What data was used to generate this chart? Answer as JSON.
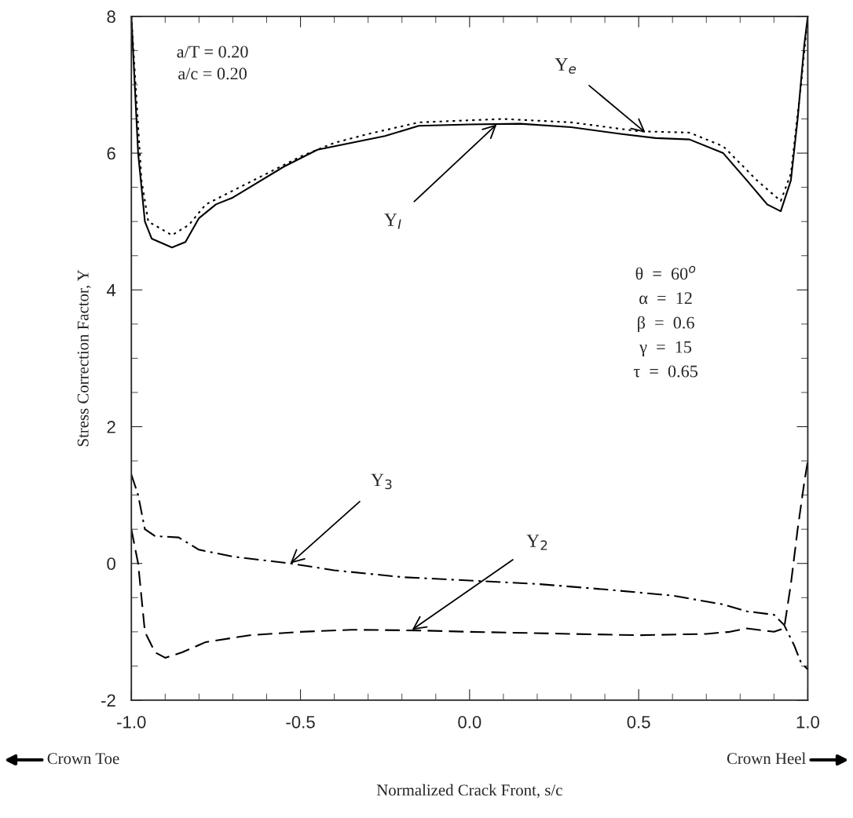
{
  "chart_data": {
    "type": "line",
    "xlabel": "Normalized Crack Front, s/c",
    "ylabel": "Stress Correction Factor, Y",
    "xlim": [
      -1.0,
      1.0
    ],
    "ylim": [
      -2,
      8
    ],
    "xticks": [
      {
        "value": -1.0,
        "label": "-1.0"
      },
      {
        "value": -0.5,
        "label": "-0.5"
      },
      {
        "value": 0.0,
        "label": "0.0"
      },
      {
        "value": 0.5,
        "label": "0.5"
      },
      {
        "value": 1.0,
        "label": "1.0"
      }
    ],
    "yticks": [
      {
        "value": -2,
        "label": "-2"
      },
      0,
      2,
      4,
      6,
      8
    ],
    "grid": false,
    "legend": false,
    "marker": "none",
    "series": [
      {
        "color": "#000000",
        "line_style": "solid",
        "x": [
          -1.0,
          -0.98,
          -0.96,
          -0.94,
          -0.88,
          -0.84,
          -0.8,
          -0.75,
          -0.7,
          -0.65,
          -0.55,
          -0.45,
          -0.35,
          -0.25,
          -0.15,
          0.0,
          0.15,
          0.3,
          0.45,
          0.55,
          0.65,
          0.75,
          0.82,
          0.88,
          0.92,
          0.95,
          0.97,
          0.99,
          1.0
        ],
        "values": [
          8.0,
          6.0,
          5.0,
          4.75,
          4.62,
          4.7,
          5.05,
          5.25,
          5.35,
          5.5,
          5.8,
          6.05,
          6.15,
          6.25,
          6.4,
          6.42,
          6.43,
          6.38,
          6.28,
          6.22,
          6.2,
          6.0,
          5.6,
          5.25,
          5.15,
          5.6,
          6.5,
          7.6,
          8.0
        ]
      },
      {
        "color": "#000000",
        "line_style": "dotted",
        "x": [
          -1.0,
          -0.97,
          -0.95,
          -0.88,
          -0.83,
          -0.78,
          -0.7,
          -0.6,
          -0.5,
          -0.4,
          -0.3,
          -0.15,
          0.0,
          0.1,
          0.3,
          0.5,
          0.65,
          0.75,
          0.85,
          0.92,
          0.95,
          0.98,
          1.0
        ],
        "values": [
          8.0,
          5.6,
          5.0,
          4.8,
          4.95,
          5.25,
          5.45,
          5.7,
          5.95,
          6.15,
          6.28,
          6.45,
          6.48,
          6.5,
          6.45,
          6.32,
          6.3,
          6.1,
          5.6,
          5.3,
          5.7,
          7.0,
          8.0
        ]
      },
      {
        "color": "#000000",
        "line_style": "dashdot",
        "x": [
          -1.0,
          -0.98,
          -0.96,
          -0.93,
          -0.86,
          -0.8,
          -0.7,
          -0.53,
          -0.4,
          -0.2,
          0.0,
          0.2,
          0.4,
          0.6,
          0.75,
          0.82,
          0.9,
          0.93,
          0.96,
          0.98,
          1.0
        ],
        "values": [
          1.3,
          1.0,
          0.5,
          0.4,
          0.38,
          0.2,
          0.1,
          0.0,
          -0.1,
          -0.2,
          -0.25,
          -0.3,
          -0.38,
          -0.47,
          -0.6,
          -0.7,
          -0.75,
          -0.9,
          -1.2,
          -1.45,
          -1.55
        ]
      },
      {
        "color": "#000000",
        "line_style": "dashed",
        "x": [
          -1.0,
          -0.98,
          -0.96,
          -0.93,
          -0.9,
          -0.85,
          -0.78,
          -0.65,
          -0.5,
          -0.35,
          -0.15,
          0.0,
          0.3,
          0.5,
          0.7,
          0.77,
          0.82,
          0.9,
          0.93,
          0.95,
          0.97,
          0.99,
          1.0
        ],
        "values": [
          0.5,
          0.0,
          -1.0,
          -1.3,
          -1.38,
          -1.3,
          -1.15,
          -1.05,
          -1.0,
          -0.97,
          -0.98,
          -1.0,
          -1.03,
          -1.05,
          -1.03,
          -1.0,
          -0.95,
          -1.0,
          -0.95,
          -0.3,
          0.5,
          1.2,
          1.5
        ]
      }
    ],
    "annotations": [
      {
        "text": "Y$_{I}$",
        "x": 0.08,
        "y": 6.42
      },
      {
        "text": "Y$_{e}$",
        "x": 0.52,
        "y": 6.3
      },
      {
        "text": "Y$_{3}$",
        "x": -0.53,
        "y": 0.0
      },
      {
        "text": "Y$_{2}$",
        "x": -0.17,
        "y": -0.97
      },
      "a/T = 0.20\na/c = 0.20",
      "θ  =  60$^{o}$\nα  =  12\nβ  =  0.6\nγ  =  15\nτ  =  0.65",
      "Crown Toe",
      "Crown Heel"
    ]
  }
}
